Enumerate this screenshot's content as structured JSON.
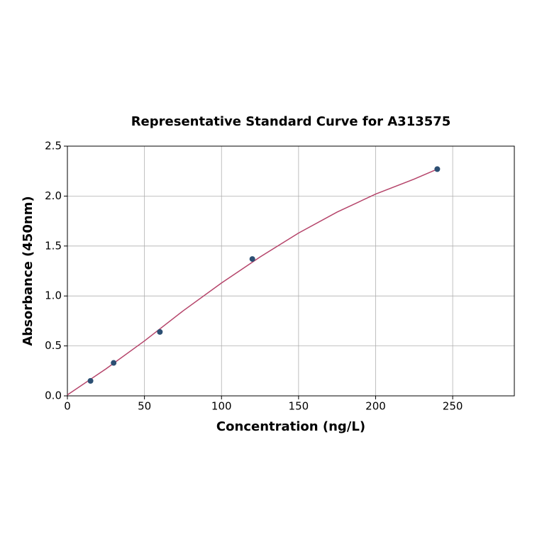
{
  "chart_data": {
    "type": "scatter",
    "title": "Representative Standard Curve for A313575",
    "x_label": "Concentration (ng/L)",
    "y_label": "Absorbance (450nm)",
    "points": {
      "color": "#2c4f73",
      "x": [
        15,
        30,
        60,
        120,
        240
      ],
      "values": [
        0.15,
        0.33,
        0.64,
        1.37,
        2.27
      ]
    },
    "curve": {
      "color": "#b5446a",
      "x": [
        0,
        25,
        50,
        75,
        100,
        125,
        150,
        175,
        200,
        225,
        240
      ],
      "values": [
        0.01,
        0.27,
        0.55,
        0.85,
        1.13,
        1.39,
        1.63,
        1.84,
        2.02,
        2.17,
        2.27
      ]
    },
    "xlim": [
      0,
      290
    ],
    "ylim": [
      0,
      2.5
    ],
    "xticks": [
      0,
      50,
      100,
      150,
      200,
      250
    ],
    "yticks": [
      {
        "value": 0,
        "label": "0.0"
      },
      0.5,
      {
        "value": 1,
        "label": "1.0"
      },
      1.5,
      {
        "value": 2,
        "label": "2.0"
      },
      2.5
    ],
    "grid": true
  }
}
